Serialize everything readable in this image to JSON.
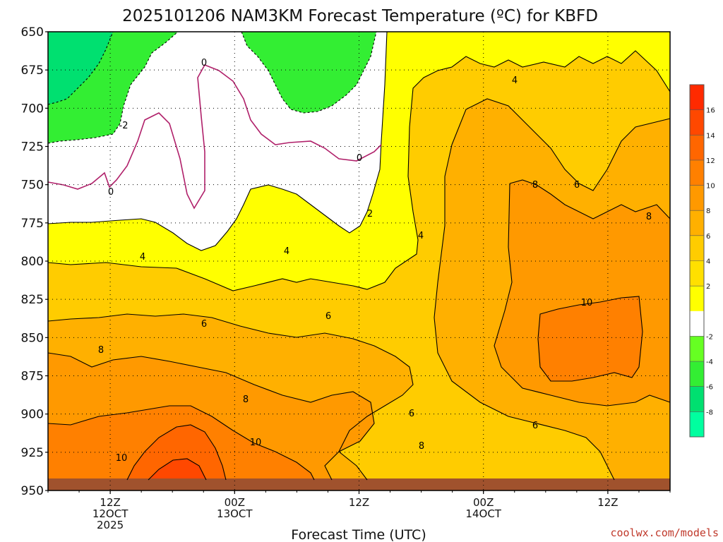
{
  "chart_data": {
    "type": "heatmap",
    "title": "2025101206 NAM3KM Forecast Temperature (ºC) for KBFD",
    "xlabel": "Forecast Time (UTC)",
    "ylabel": "",
    "credit": "coolwx.com/models",
    "y_ticks": [
      650,
      675,
      700,
      725,
      750,
      775,
      800,
      825,
      850,
      875,
      900,
      925,
      950
    ],
    "ylim": [
      650,
      950
    ],
    "y_inverted": true,
    "x_ticks": [
      {
        "hour": 6,
        "line1": "12Z",
        "line2": "12OCT",
        "line3": "2025"
      },
      {
        "hour": 18,
        "line1": "00Z",
        "line2": "13OCT",
        "line3": ""
      },
      {
        "hour": 30,
        "line1": "12Z",
        "line2": "",
        "line3": ""
      },
      {
        "hour": 42,
        "line1": "00Z",
        "line2": "14OCT",
        "line3": ""
      },
      {
        "hour": 54,
        "line1": "12Z",
        "line2": "",
        "line3": ""
      }
    ],
    "xlim": [
      0,
      60
    ],
    "grid": true,
    "colorbar": {
      "levels": [
        -10,
        -8,
        -6,
        -4,
        -2,
        0,
        2,
        4,
        6,
        8,
        10,
        12,
        14,
        16,
        18
      ],
      "colors": [
        "#00ff9f",
        "#00e070",
        "#33ee33",
        "#66ff22",
        "#ffffff",
        "#ffff00",
        "#ffe000",
        "#ffcc00",
        "#ffb000",
        "#ff9900",
        "#ff8000",
        "#ff6600",
        "#ff4800",
        "#ff2a00"
      ],
      "labels": [
        "-8",
        "-6",
        "-4",
        "-2",
        "2",
        "4",
        "6",
        "8",
        "10",
        "12",
        "14",
        "16"
      ]
    },
    "contour_labels": [
      "0",
      "0",
      "0",
      "-2",
      "2",
      "4",
      "4",
      "4",
      "4",
      "6",
      "6",
      "6",
      "6",
      "6",
      "8",
      "8",
      "8",
      "8",
      "8",
      "10",
      "10",
      "10"
    ],
    "ground_color": "#a0522d"
  }
}
